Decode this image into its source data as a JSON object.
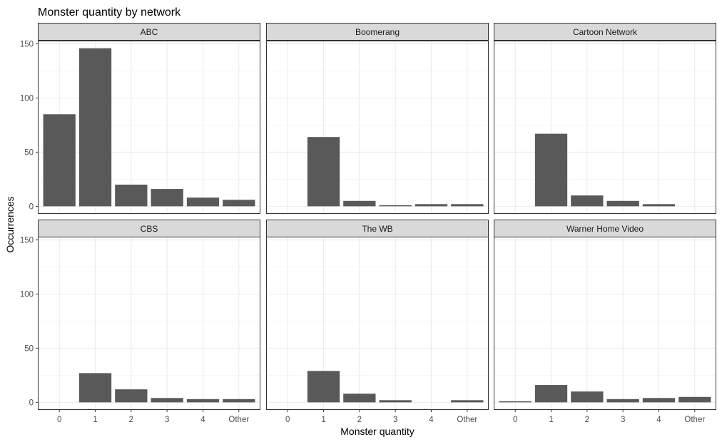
{
  "chart_data": {
    "type": "bar",
    "title": "Monster quantity by network",
    "xlabel": "Monster quantity",
    "ylabel": "Occurrences",
    "categories": [
      "0",
      "1",
      "2",
      "3",
      "4",
      "Other"
    ],
    "yticks": [
      0,
      50,
      100,
      150
    ],
    "ylim": [
      -7,
      153
    ],
    "grid": true,
    "bar_color": "#595959",
    "strip_color": "#d9d9d9",
    "facets": [
      {
        "name": "ABC",
        "values": [
          85,
          146,
          20,
          16,
          8,
          6
        ]
      },
      {
        "name": "Boomerang",
        "values": [
          0,
          64,
          5,
          1,
          2,
          2
        ]
      },
      {
        "name": "Cartoon Network",
        "values": [
          0,
          67,
          10,
          5,
          2,
          0
        ]
      },
      {
        "name": "CBS",
        "values": [
          0,
          27,
          12,
          4,
          3,
          3
        ]
      },
      {
        "name": "The WB",
        "values": [
          0,
          29,
          8,
          2,
          0,
          2
        ]
      },
      {
        "name": "Warner Home Video",
        "values": [
          1,
          16,
          10,
          3,
          4,
          5
        ]
      }
    ]
  }
}
